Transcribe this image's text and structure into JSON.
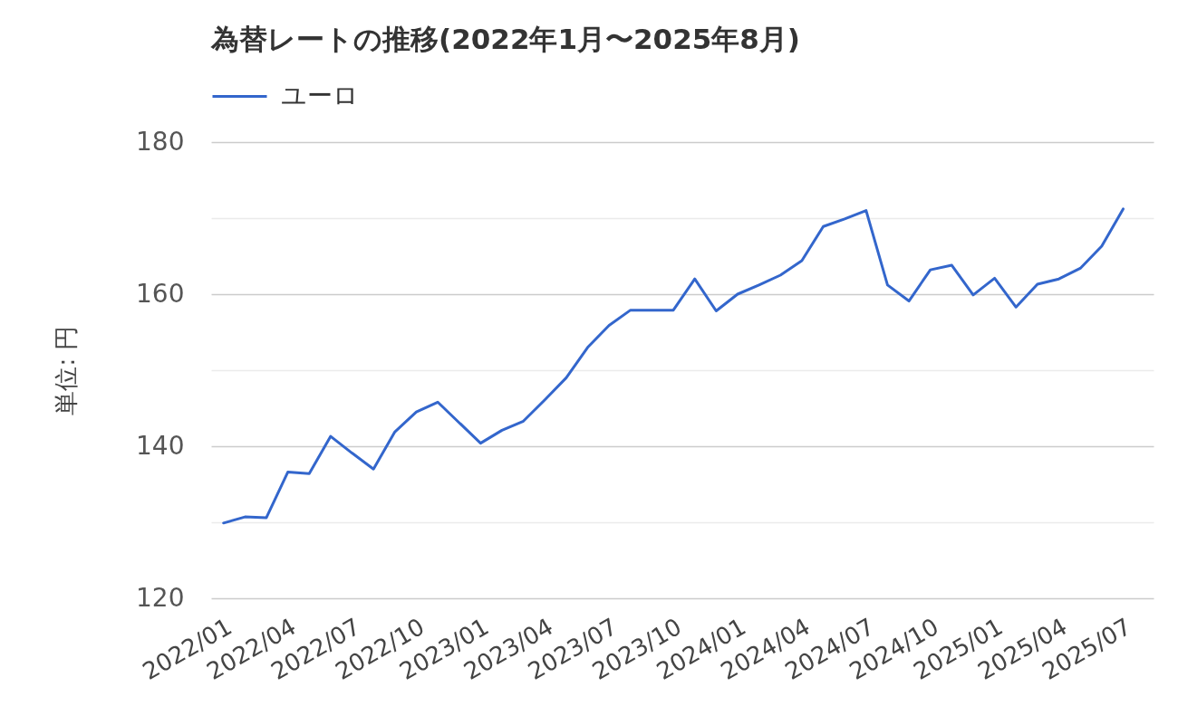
{
  "chart_data": {
    "type": "line",
    "title": "為替レートの推移(2022年1月〜2025年8月)",
    "ylabel": "単位: 円",
    "categories": [
      "2022/01",
      null,
      null,
      "2022/04",
      null,
      null,
      "2022/07",
      null,
      null,
      "2022/10",
      null,
      null,
      "2023/01",
      null,
      null,
      "2023/04",
      null,
      null,
      "2023/07",
      null,
      null,
      "2023/10",
      null,
      null,
      "2024/01",
      null,
      null,
      "2024/04",
      null,
      null,
      "2024/07",
      null,
      null,
      "2024/10",
      null,
      null,
      "2025/01",
      null,
      null,
      "2025/04",
      null,
      null,
      "2025/07"
    ],
    "series": [
      {
        "name": "ユーロ",
        "color": "#3366cc",
        "values": [
          129.9,
          130.7,
          130.6,
          136.6,
          136.4,
          141.3,
          139.1,
          137.0,
          141.9,
          144.5,
          145.8,
          143.1,
          140.4,
          142.1,
          143.3,
          146.1,
          149.0,
          153.0,
          155.9,
          157.9,
          157.9,
          157.9,
          162.0,
          157.8,
          160.0,
          161.2,
          162.5,
          164.4,
          168.9,
          169.9,
          171.0,
          161.2,
          159.1,
          163.2,
          163.8,
          159.9,
          162.1,
          158.3,
          161.3,
          162.0,
          163.4,
          166.3,
          171.2
        ]
      }
    ],
    "ylim": [
      120,
      180
    ],
    "yticks": [
      120,
      {
        "value": 130,
        "label": null
      },
      140,
      {
        "value": 150,
        "label": null
      },
      160,
      {
        "value": 170,
        "label": null
      },
      180
    ],
    "grid": "y",
    "legend": "top left"
  }
}
